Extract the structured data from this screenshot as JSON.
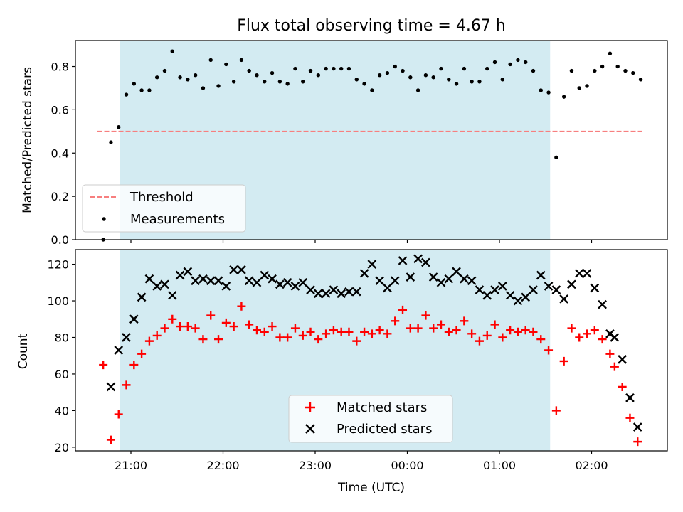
{
  "chart_data": [
    {
      "type": "scatter",
      "title": "Flux total observing time = 4.67 h",
      "ylabel": "Matched/Predicted stars",
      "ylim": [
        0,
        0.92
      ],
      "yticks": [
        "0.0",
        "0.2",
        "0.4",
        "0.6",
        "0.8"
      ],
      "grid": false,
      "legend_placement": "lower-left",
      "shaded_region": {
        "x_start": "20:53",
        "x_end": "01:33",
        "color": "#d3ebf2"
      },
      "threshold": {
        "name": "Threshold",
        "value": 0.5,
        "x_start": "20:38",
        "x_end": "02:33",
        "color": "#f77f7f"
      },
      "series": [
        {
          "name": "Measurements",
          "marker": "dot",
          "color": "#000000",
          "points": [
            [
              "20:42",
              0.0
            ],
            [
              "20:47",
              0.45
            ],
            [
              "20:52",
              0.52
            ],
            [
              "20:57",
              0.67
            ],
            [
              "21:02",
              0.72
            ],
            [
              "21:07",
              0.69
            ],
            [
              "21:12",
              0.69
            ],
            [
              "21:17",
              0.75
            ],
            [
              "21:22",
              0.78
            ],
            [
              "21:27",
              0.87
            ],
            [
              "21:32",
              0.75
            ],
            [
              "21:37",
              0.74
            ],
            [
              "21:42",
              0.76
            ],
            [
              "21:47",
              0.7
            ],
            [
              "21:52",
              0.83
            ],
            [
              "21:57",
              0.71
            ],
            [
              "22:02",
              0.81
            ],
            [
              "22:07",
              0.73
            ],
            [
              "22:12",
              0.83
            ],
            [
              "22:17",
              0.78
            ],
            [
              "22:22",
              0.76
            ],
            [
              "22:27",
              0.73
            ],
            [
              "22:32",
              0.77
            ],
            [
              "22:37",
              0.73
            ],
            [
              "22:42",
              0.72
            ],
            [
              "22:47",
              0.79
            ],
            [
              "22:52",
              0.73
            ],
            [
              "22:57",
              0.78
            ],
            [
              "23:02",
              0.76
            ],
            [
              "23:07",
              0.79
            ],
            [
              "23:12",
              0.79
            ],
            [
              "23:17",
              0.79
            ],
            [
              "23:22",
              0.79
            ],
            [
              "23:27",
              0.74
            ],
            [
              "23:32",
              0.72
            ],
            [
              "23:37",
              0.69
            ],
            [
              "23:42",
              0.76
            ],
            [
              "23:47",
              0.77
            ],
            [
              "23:52",
              0.8
            ],
            [
              "23:57",
              0.78
            ],
            [
              "00:02",
              0.75
            ],
            [
              "00:07",
              0.69
            ],
            [
              "00:12",
              0.76
            ],
            [
              "00:17",
              0.75
            ],
            [
              "00:22",
              0.79
            ],
            [
              "00:27",
              0.74
            ],
            [
              "00:32",
              0.72
            ],
            [
              "00:37",
              0.79
            ],
            [
              "00:42",
              0.73
            ],
            [
              "00:47",
              0.73
            ],
            [
              "00:52",
              0.79
            ],
            [
              "00:57",
              0.82
            ],
            [
              "01:02",
              0.74
            ],
            [
              "01:07",
              0.81
            ],
            [
              "01:12",
              0.83
            ],
            [
              "01:17",
              0.82
            ],
            [
              "01:22",
              0.78
            ],
            [
              "01:27",
              0.69
            ],
            [
              "01:32",
              0.68
            ],
            [
              "01:37",
              0.38
            ],
            [
              "01:42",
              0.66
            ],
            [
              "01:47",
              0.78
            ],
            [
              "01:52",
              0.7
            ],
            [
              "01:57",
              0.71
            ],
            [
              "02:02",
              0.78
            ],
            [
              "02:07",
              0.8
            ],
            [
              "02:12",
              0.86
            ],
            [
              "02:17",
              0.8
            ],
            [
              "02:22",
              0.78
            ],
            [
              "02:27",
              0.77
            ],
            [
              "02:32",
              0.74
            ]
          ]
        }
      ]
    },
    {
      "type": "scatter",
      "xlabel": "Time (UTC)",
      "ylabel": "Count",
      "ylim": [
        18,
        128
      ],
      "yticks": [
        "20",
        "40",
        "60",
        "80",
        "100",
        "120"
      ],
      "xticks": [
        "21:00",
        "22:00",
        "23:00",
        "00:00",
        "01:00",
        "02:00"
      ],
      "grid": false,
      "legend_placement": "lower-center",
      "shaded_region": {
        "x_start": "20:53",
        "x_end": "01:33",
        "color": "#d3ebf2"
      },
      "series": [
        {
          "name": "Matched stars",
          "marker": "plus",
          "color": "#ff0000",
          "points": [
            [
              "20:42",
              65
            ],
            [
              "20:47",
              24
            ],
            [
              "20:52",
              38
            ],
            [
              "20:57",
              54
            ],
            [
              "21:02",
              65
            ],
            [
              "21:07",
              71
            ],
            [
              "21:12",
              78
            ],
            [
              "21:17",
              81
            ],
            [
              "21:22",
              85
            ],
            [
              "21:27",
              90
            ],
            [
              "21:32",
              86
            ],
            [
              "21:37",
              86
            ],
            [
              "21:42",
              85
            ],
            [
              "21:47",
              79
            ],
            [
              "21:52",
              92
            ],
            [
              "21:57",
              79
            ],
            [
              "22:02",
              88
            ],
            [
              "22:07",
              86
            ],
            [
              "22:12",
              97
            ],
            [
              "22:17",
              87
            ],
            [
              "22:22",
              84
            ],
            [
              "22:27",
              83
            ],
            [
              "22:32",
              86
            ],
            [
              "22:37",
              80
            ],
            [
              "22:42",
              80
            ],
            [
              "22:47",
              85
            ],
            [
              "22:52",
              81
            ],
            [
              "22:57",
              83
            ],
            [
              "23:02",
              79
            ],
            [
              "23:07",
              82
            ],
            [
              "23:12",
              84
            ],
            [
              "23:17",
              83
            ],
            [
              "23:22",
              83
            ],
            [
              "23:27",
              78
            ],
            [
              "23:32",
              83
            ],
            [
              "23:37",
              82
            ],
            [
              "23:42",
              84
            ],
            [
              "23:47",
              82
            ],
            [
              "23:52",
              89
            ],
            [
              "23:57",
              95
            ],
            [
              "00:02",
              85
            ],
            [
              "00:07",
              85
            ],
            [
              "00:12",
              92
            ],
            [
              "00:17",
              85
            ],
            [
              "00:22",
              87
            ],
            [
              "00:27",
              83
            ],
            [
              "00:32",
              84
            ],
            [
              "00:37",
              89
            ],
            [
              "00:42",
              82
            ],
            [
              "00:47",
              78
            ],
            [
              "00:52",
              81
            ],
            [
              "00:57",
              87
            ],
            [
              "01:02",
              80
            ],
            [
              "01:07",
              84
            ],
            [
              "01:12",
              83
            ],
            [
              "01:17",
              84
            ],
            [
              "01:22",
              83
            ],
            [
              "01:27",
              79
            ],
            [
              "01:32",
              73
            ],
            [
              "01:37",
              40
            ],
            [
              "01:42",
              67
            ],
            [
              "01:47",
              85
            ],
            [
              "01:52",
              80
            ],
            [
              "01:57",
              82
            ],
            [
              "02:02",
              84
            ],
            [
              "02:07",
              79
            ],
            [
              "02:12",
              71
            ],
            [
              "02:15",
              64
            ],
            [
              "02:20",
              53
            ],
            [
              "02:25",
              36
            ],
            [
              "02:30",
              23
            ]
          ]
        },
        {
          "name": "Predicted stars",
          "marker": "x",
          "color": "#000000",
          "points": [
            [
              "20:47",
              53
            ],
            [
              "20:52",
              73
            ],
            [
              "20:57",
              80
            ],
            [
              "21:02",
              90
            ],
            [
              "21:07",
              102
            ],
            [
              "21:12",
              112
            ],
            [
              "21:17",
              108
            ],
            [
              "21:22",
              109
            ],
            [
              "21:27",
              103
            ],
            [
              "21:32",
              114
            ],
            [
              "21:37",
              116
            ],
            [
              "21:42",
              111
            ],
            [
              "21:47",
              112
            ],
            [
              "21:52",
              111
            ],
            [
              "21:57",
              111
            ],
            [
              "22:02",
              108
            ],
            [
              "22:07",
              117
            ],
            [
              "22:12",
              117
            ],
            [
              "22:17",
              111
            ],
            [
              "22:22",
              110
            ],
            [
              "22:27",
              114
            ],
            [
              "22:32",
              112
            ],
            [
              "22:37",
              109
            ],
            [
              "22:42",
              110
            ],
            [
              "22:47",
              108
            ],
            [
              "22:52",
              110
            ],
            [
              "22:57",
              106
            ],
            [
              "23:02",
              104
            ],
            [
              "23:07",
              104
            ],
            [
              "23:12",
              106
            ],
            [
              "23:17",
              104
            ],
            [
              "23:22",
              105
            ],
            [
              "23:27",
              105
            ],
            [
              "23:32",
              115
            ],
            [
              "23:37",
              120
            ],
            [
              "23:42",
              111
            ],
            [
              "23:47",
              107
            ],
            [
              "23:52",
              111
            ],
            [
              "23:57",
              122
            ],
            [
              "00:02",
              113
            ],
            [
              "00:07",
              123
            ],
            [
              "00:12",
              121
            ],
            [
              "00:17",
              113
            ],
            [
              "00:22",
              110
            ],
            [
              "00:27",
              112
            ],
            [
              "00:32",
              116
            ],
            [
              "00:37",
              112
            ],
            [
              "00:42",
              111
            ],
            [
              "00:47",
              106
            ],
            [
              "00:52",
              103
            ],
            [
              "00:57",
              106
            ],
            [
              "01:02",
              108
            ],
            [
              "01:07",
              103
            ],
            [
              "01:12",
              100
            ],
            [
              "01:17",
              102
            ],
            [
              "01:22",
              106
            ],
            [
              "01:27",
              114
            ],
            [
              "01:32",
              108
            ],
            [
              "01:37",
              106
            ],
            [
              "01:42",
              101
            ],
            [
              "01:47",
              109
            ],
            [
              "01:52",
              115
            ],
            [
              "01:57",
              115
            ],
            [
              "02:02",
              107
            ],
            [
              "02:07",
              98
            ],
            [
              "02:12",
              82
            ],
            [
              "02:15",
              80
            ],
            [
              "02:20",
              68
            ],
            [
              "02:25",
              47
            ],
            [
              "02:30",
              31
            ]
          ]
        }
      ]
    }
  ]
}
